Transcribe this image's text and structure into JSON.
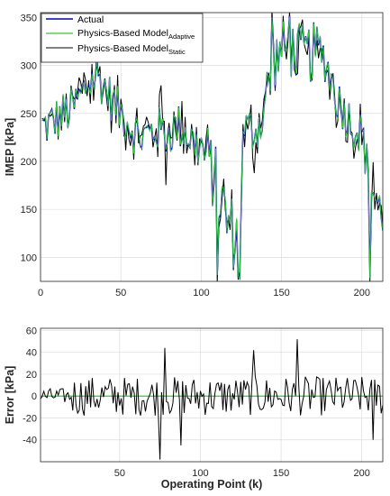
{
  "chart_data": [
    {
      "type": "line",
      "ylabel": "IMEP [kPa]",
      "xlim": [
        0,
        213
      ],
      "ylim": [
        75,
        355
      ],
      "xticks": [
        0,
        50,
        100,
        150,
        200
      ],
      "yticks": [
        100,
        150,
        200,
        250,
        300,
        350
      ],
      "grid": true,
      "legend_position": "top-left",
      "series": [
        {
          "name": "Actual",
          "color": "#0000cc"
        },
        {
          "name": "Physics-Based Model",
          "subscript": "Adaptive",
          "color": "#33cc33"
        },
        {
          "name": "Physics-Based Model",
          "subscript": "Static",
          "color": "#000000"
        }
      ],
      "segments": [
        {
          "x": [
            0,
            55
          ],
          "base_values": [
            235,
            238,
            244,
            250,
            255,
            268,
            282,
            290,
            278,
            262,
            250,
            241
          ]
        },
        {
          "x": [
            55,
            78
          ],
          "base_values": [
            241,
            230,
            225,
            228,
            232,
            233,
            228
          ]
        },
        {
          "x": [
            78,
            100
          ],
          "base_values": [
            228,
            232,
            238,
            232,
            225,
            218,
            215
          ]
        },
        {
          "x": [
            100,
            124
          ],
          "base_values": [
            215,
            200,
            185,
            160,
            140,
            125,
            118
          ]
        },
        {
          "x": [
            124,
            127
          ],
          "base_values": [
            118,
            210,
            235
          ]
        },
        {
          "x": [
            127,
            137
          ],
          "base_values": [
            235,
            232,
            240
          ]
        },
        {
          "x": [
            137,
            176
          ],
          "base_values": [
            240,
            275,
            305,
            315,
            318,
            315,
            312,
            312,
            314,
            310
          ]
        },
        {
          "x": [
            176,
            200
          ],
          "base_values": [
            310,
            292,
            268,
            255,
            245,
            235,
            230
          ]
        },
        {
          "x": [
            200,
            213
          ],
          "base_values": [
            230,
            195,
            170,
            155,
            145
          ]
        }
      ],
      "noise_amplitude": 24
    },
    {
      "type": "line",
      "xlabel": "Operating Point (k)",
      "ylabel": "Error [kPa]",
      "xlim": [
        1,
        213
      ],
      "ylim": [
        -60,
        62
      ],
      "xticks": [
        50,
        100,
        150,
        200
      ],
      "yticks": [
        -40,
        -20,
        0,
        20,
        40,
        60
      ],
      "grid": true,
      "zero_line_color": "#33cc33",
      "error_noise_amplitude": 18,
      "error_peaks": [
        {
          "x": 75,
          "y": -58
        },
        {
          "x": 78,
          "y": 44
        },
        {
          "x": 88,
          "y": -45
        },
        {
          "x": 133,
          "y": 42
        },
        {
          "x": 160,
          "y": 52
        },
        {
          "x": 207,
          "y": -40
        }
      ]
    }
  ]
}
